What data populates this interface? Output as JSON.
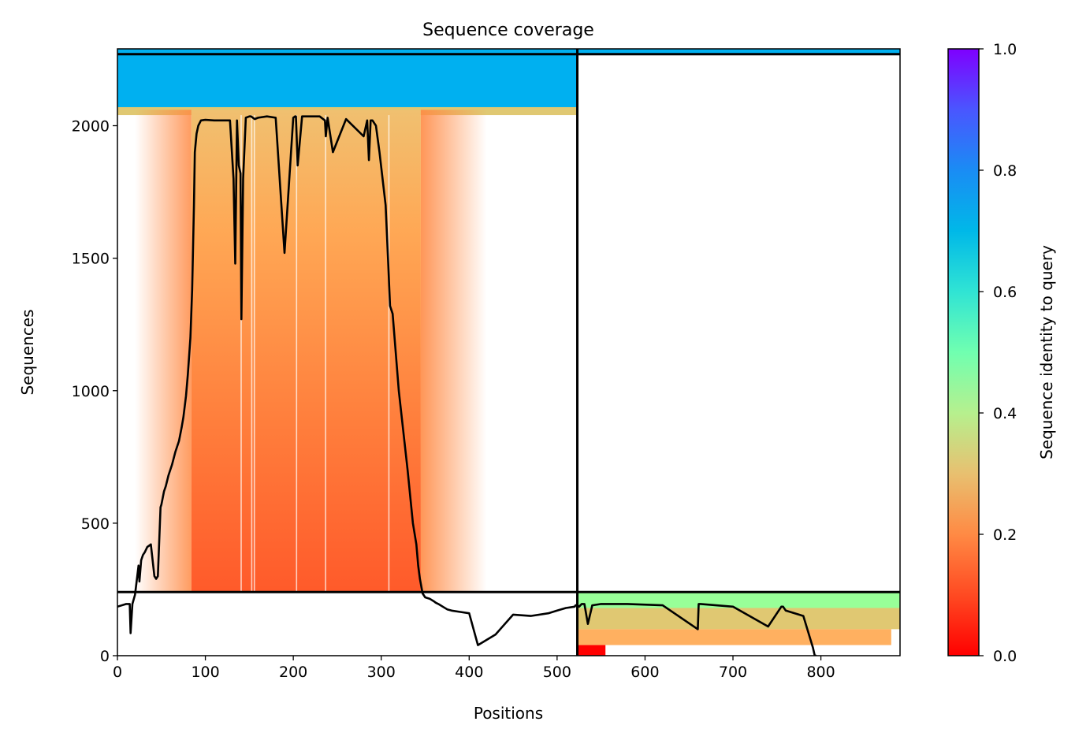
{
  "chart_data": {
    "type": "heatmap",
    "title": "Sequence coverage",
    "xlabel": "Positions",
    "ylabel": "Sequences",
    "xlim": [
      0,
      890
    ],
    "ylim": [
      0,
      2290
    ],
    "xticks": [
      0,
      100,
      200,
      300,
      400,
      500,
      600,
      700,
      800
    ],
    "yticks": [
      0,
      500,
      1000,
      1500,
      2000
    ],
    "colorbar": {
      "label": "Sequence identity to query",
      "range": [
        0.0,
        1.0
      ],
      "ticks": [
        "0.0",
        "0.2",
        "0.4",
        "0.6",
        "0.8",
        "1.0"
      ],
      "colormap": "rainbow_r",
      "colors": [
        "#ff0000",
        "#ff7f3c",
        "#ffb060",
        "#e0c872",
        "#98ff98",
        "#26e0d8",
        "#00b0f0",
        "#2080f0",
        "#4a3cff",
        "#7f00ff"
      ]
    },
    "chain_boundary_x": 523,
    "horizontal_boundaries_y": [
      240,
      2270
    ],
    "coverage_line_color": "#000000",
    "coverage": {
      "x": [
        0,
        10,
        14,
        15,
        17,
        20,
        24,
        25,
        27,
        29,
        31,
        34,
        38,
        42,
        44,
        46,
        49,
        50,
        53,
        55,
        58,
        62,
        66,
        70,
        73,
        75,
        78,
        80,
        83,
        85,
        87,
        88,
        90,
        92,
        95,
        100,
        110,
        120,
        128,
        132,
        134,
        136,
        138,
        140,
        141,
        143,
        146,
        150,
        152,
        154,
        156,
        160,
        170,
        180,
        190,
        200,
        202,
        203,
        205,
        210,
        220,
        230,
        236,
        237,
        239,
        245,
        260,
        280,
        284,
        286,
        288,
        290,
        294,
        298,
        305,
        308,
        310,
        313,
        320,
        330,
        336,
        340,
        342,
        344,
        347,
        350,
        355,
        360,
        362,
        365,
        370,
        375,
        380,
        390,
        400,
        410,
        430,
        450,
        470,
        490,
        500,
        510,
        520,
        521,
        523,
        525,
        528,
        531,
        535,
        540,
        550,
        580,
        620,
        660,
        661,
        663,
        700,
        740,
        755,
        757,
        760,
        780,
        791,
        793,
        795,
        820,
        850,
        880,
        884,
        886,
        888,
        890
      ],
      "y": [
        185,
        195,
        195,
        85,
        195,
        230,
        340,
        280,
        360,
        380,
        390,
        410,
        420,
        300,
        290,
        300,
        560,
        570,
        620,
        640,
        680,
        720,
        770,
        810,
        860,
        900,
        980,
        1060,
        1200,
        1380,
        1700,
        1900,
        1970,
        2000,
        2020,
        2022,
        2020,
        2020,
        2020,
        1800,
        1480,
        2020,
        1850,
        1820,
        1270,
        1800,
        2030,
        2035,
        2035,
        2030,
        2025,
        2030,
        2035,
        2030,
        1520,
        2030,
        2035,
        2035,
        1850,
        2035,
        2035,
        2035,
        2020,
        1960,
        2030,
        1900,
        2025,
        1960,
        2020,
        1870,
        2020,
        2020,
        2000,
        1900,
        1700,
        1480,
        1320,
        1290,
        1000,
        700,
        500,
        420,
        340,
        290,
        235,
        220,
        215,
        205,
        200,
        195,
        185,
        175,
        170,
        165,
        160,
        40,
        80,
        155,
        150,
        160,
        170,
        180,
        185,
        190,
        190,
        185,
        195,
        195,
        120,
        190,
        195,
        195,
        190,
        100,
        195,
        195,
        185,
        110,
        185,
        185,
        170,
        150,
        30,
        0,
        0
      ]
    },
    "msa_bands": [
      {
        "x0": 0,
        "x1": 523,
        "y0": 2040,
        "y1": 2070,
        "identity": 0.35
      },
      {
        "x0": 0,
        "x1": 523,
        "y0": 2070,
        "y1": 2270,
        "identity": 0.62
      },
      {
        "x0": 523,
        "x1": 890,
        "y0": 2270,
        "y1": 2290,
        "identity": 0.62
      },
      {
        "x0": 0,
        "x1": 523,
        "y0": 2270,
        "y1": 2290,
        "identity": 0.63
      },
      {
        "x0": 523,
        "x1": 890,
        "y0": 180,
        "y1": 240,
        "identity": 0.42
      },
      {
        "x0": 523,
        "x1": 890,
        "y0": 100,
        "y1": 180,
        "identity": 0.32
      },
      {
        "x0": 523,
        "x1": 880,
        "y0": 40,
        "y1": 100,
        "identity": 0.2
      },
      {
        "x0": 523,
        "x1": 555,
        "y0": 0,
        "y1": 40,
        "identity": 0.05
      }
    ],
    "grid": false,
    "legend": "none"
  }
}
